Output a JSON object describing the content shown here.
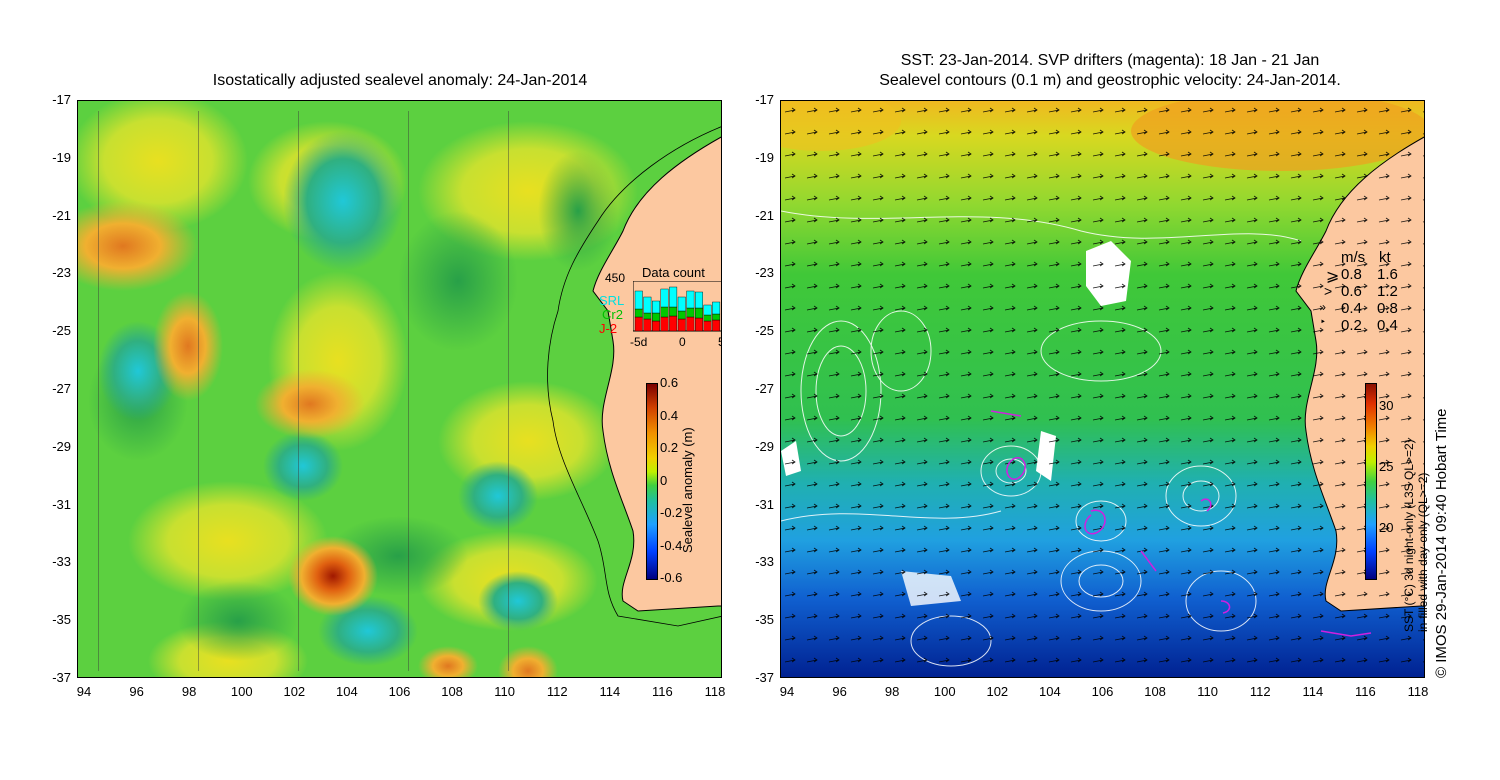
{
  "left_panel": {
    "title": "Isostatically adjusted sealevel anomaly: 24-Jan-2014",
    "x_ticks": [
      "94",
      "96",
      "98",
      "100",
      "102",
      "104",
      "106",
      "108",
      "110",
      "112",
      "114",
      "116",
      "118"
    ],
    "y_ticks": [
      "-17",
      "-19",
      "-21",
      "-23",
      "-25",
      "-27",
      "-29",
      "-31",
      "-33",
      "-35",
      "-37"
    ],
    "colorbar": {
      "label": "Sealevel anomaly (m)",
      "ticks": [
        "0.6",
        "0.4",
        "0.2",
        "0",
        "-0.2",
        "-0.4",
        "-0.6"
      ]
    },
    "data_count": {
      "title": "Data count",
      "max_label": "450",
      "x_ticks": [
        "-5d",
        "0",
        "5"
      ],
      "legend": [
        {
          "name": "SRL",
          "color": "#00ffff"
        },
        {
          "name": "Cr2",
          "color": "#00c800"
        },
        {
          "name": "J-2",
          "color": "#ff0000"
        }
      ]
    }
  },
  "right_panel": {
    "title_line1": "SST: 23-Jan-2014. SVP drifters (magenta): 18 Jan - 21 Jan",
    "title_line2": "Sealevel contours (0.1 m) and geostrophic velocity: 24-Jan-2014.",
    "x_ticks": [
      "94",
      "96",
      "98",
      "100",
      "102",
      "104",
      "106",
      "108",
      "110",
      "112",
      "114",
      "116",
      "118"
    ],
    "y_ticks": [
      "-17",
      "-19",
      "-21",
      "-23",
      "-25",
      "-27",
      "-29",
      "-31",
      "-33",
      "-35",
      "-37"
    ],
    "velocity_legend": {
      "header_ms": "m/s",
      "header_kt": "kt",
      "rows": [
        {
          "ms": "0.8",
          "kt": "1.6"
        },
        {
          "ms": "0.6",
          "kt": "1.2"
        },
        {
          "ms": "0.4",
          "kt": "0.8"
        },
        {
          "ms": "0.2",
          "kt": "0.4"
        }
      ]
    },
    "colorbar": {
      "label_line1": "SST (°C) 3d night-only (L3S QL>=2)",
      "label_line2": "in-filled with day-only (QL>=2)",
      "ticks": [
        "30",
        "25",
        "20"
      ]
    }
  },
  "credit": "© IMOS 29-Jan-2014 09:40 Hobart Time",
  "colors": {
    "land": "#fcc8a0",
    "ocean_green": "#3ec83c",
    "ssh_high": "#c83200",
    "ssh_low": "#00c8ff"
  }
}
